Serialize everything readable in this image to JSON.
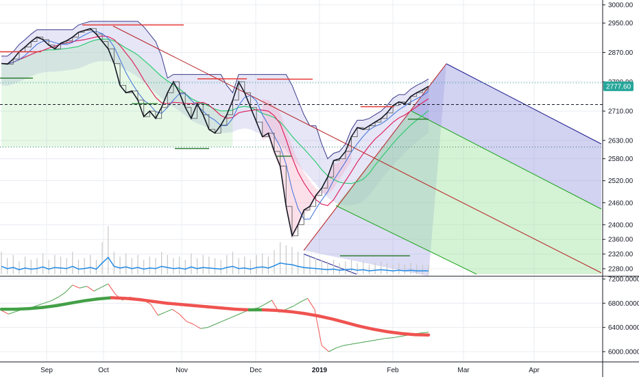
{
  "chart_data": {
    "type": "line",
    "title": "",
    "main_panel": {
      "ylim": [
        2240,
        3010
      ],
      "y_ticks": [
        "3000.00",
        "2950.00",
        "2870.00",
        "2790.00",
        "2710.00",
        "2630.00",
        "2580.00",
        "2520.00",
        "2460.00",
        "2400.00",
        "2360.00",
        "2320.00",
        "2280.00"
      ],
      "y_tick_values": [
        3000,
        2950,
        2870,
        2790,
        2710,
        2630,
        2580,
        2520,
        2460,
        2400,
        2360,
        2320,
        2280
      ],
      "last_price_label": "2777.60",
      "last_price": 2777.6,
      "dashed_reference_level": 2728,
      "dotted_levels": [
        2787,
        2612
      ],
      "series": [
        {
          "name": "price",
          "values": [
            2840,
            2838,
            2852,
            2872,
            2885,
            2900,
            2912,
            2905,
            2890,
            2880,
            2895,
            2902,
            2912,
            2925,
            2930,
            2935,
            2920,
            2900,
            2880,
            2840,
            2780,
            2760,
            2765,
            2740,
            2695,
            2710,
            2690,
            2720,
            2760,
            2790,
            2760,
            2720,
            2690,
            2730,
            2700,
            2660,
            2650,
            2672,
            2700,
            2740,
            2790,
            2760,
            2720,
            2680,
            2640,
            2650,
            2600,
            2560,
            2450,
            2370,
            2400,
            2440,
            2450,
            2480,
            2500,
            2530,
            2575,
            2580,
            2600,
            2640,
            2665,
            2660,
            2670,
            2680,
            2690,
            2705,
            2725,
            2735,
            2730,
            2750,
            2760,
            2768,
            2777.6
          ]
        }
      ],
      "volume": [
        14,
        10,
        12,
        8,
        11,
        9,
        10,
        13,
        9,
        12,
        11,
        10,
        14,
        9,
        10,
        12,
        9,
        20,
        30,
        14,
        11,
        13,
        10,
        12,
        9,
        11,
        10,
        14,
        12,
        10,
        11,
        9,
        13,
        10,
        12,
        11,
        10,
        9,
        12,
        14,
        10,
        11,
        9,
        12,
        13,
        11,
        15,
        20,
        18,
        17,
        14,
        12,
        11,
        10,
        9,
        8,
        9,
        7,
        8,
        9,
        7,
        8,
        6,
        7,
        8,
        7,
        6,
        7,
        6,
        7,
        6,
        6,
        6
      ]
    },
    "lower_panel": {
      "ylim": [
        5900,
        7250
      ],
      "y_ticks": [
        "7200.0000",
        "6800.0000",
        "6400.0000",
        "6000.0000"
      ],
      "y_tick_values": [
        7200,
        6800,
        6400,
        6000
      ],
      "series": [
        {
          "name": "",
          "values": [
            6680,
            6620,
            6660,
            6700,
            6720,
            6760,
            6800,
            6840,
            6900,
            6980,
            7100,
            7050,
            7080,
            7000,
            7060,
            7120,
            6950,
            6850,
            6900,
            6880,
            6850,
            6780,
            6600,
            6650,
            6700,
            6620,
            6500,
            6450,
            6380,
            6400,
            6450,
            6500,
            6550,
            6600,
            6650,
            6700,
            6720,
            6780,
            6850,
            6650,
            6700,
            6750,
            6820,
            6880,
            6700,
            6100,
            6000,
            6060,
            6100,
            6120,
            6140,
            6160,
            6180,
            6200,
            6220,
            6230,
            6250,
            6270,
            6290,
            6310,
            6320
          ]
        },
        {
          "name": "",
          "values": [
            6700,
            6700,
            6710,
            6730,
            6760,
            6800,
            6840,
            6870,
            6890,
            6880,
            6860,
            6830,
            6800,
            6780,
            6760,
            6740,
            6720,
            6700,
            6690,
            6690,
            6680,
            6660,
            6630,
            6590,
            6540,
            6480,
            6420,
            6370,
            6330,
            6300,
            6280,
            6275
          ]
        }
      ]
    },
    "x_axis": {
      "tick_labels": [
        "Sep",
        "Oct",
        "Nov",
        "Dec",
        "2019",
        "Feb",
        "Mar",
        "Apr"
      ],
      "bold_labels": [
        "2019"
      ]
    },
    "colors": {
      "price": "#131722",
      "ma_red": "#e0245e",
      "ma_green": "#2ecc71",
      "upper_band": "#3a3a8c",
      "volume_line": "#1e88e5",
      "pitchfork_blue": "#1a1a8c",
      "pitchfork_green": "#19a319",
      "pitchfork_fill_blue": "#9b9be0",
      "pitchfork_fill_green": "#9fe29f",
      "trend_red": "#b71c1c",
      "hline_red": "#e53935",
      "hline_green": "#2e7d32",
      "lower_red": "#ef5350",
      "lower_green": "#43a047",
      "price_label_bg": "#26a69a",
      "grid": "#e9ecf1",
      "axis": "#131722"
    }
  }
}
